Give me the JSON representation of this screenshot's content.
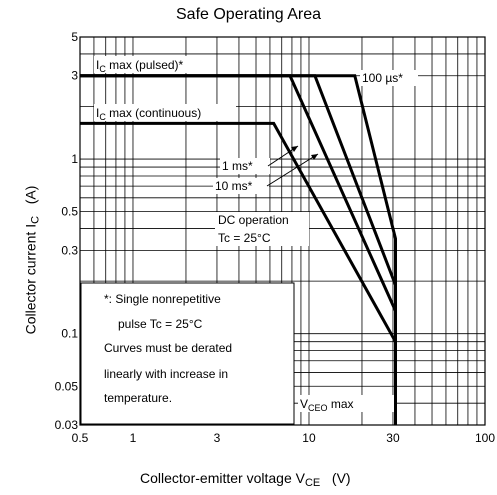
{
  "chart_data": {
    "type": "line",
    "title": "Safe Operating Area",
    "xlabel": {
      "text": "Collector-emitter voltage V",
      "sub": "CE",
      "unit": "(V)"
    },
    "ylabel": {
      "text": "Collector current I",
      "sub": "C",
      "unit": "(A)"
    },
    "x_scale": "log",
    "y_scale": "log",
    "xlim": [
      0.5,
      100
    ],
    "ylim": [
      0.03,
      5
    ],
    "x_ticks": [
      {
        "value": 0.5,
        "label": "0.5"
      },
      {
        "value": 1,
        "label": "1"
      },
      {
        "value": 3,
        "label": "3"
      },
      {
        "value": 10,
        "label": "10"
      },
      {
        "value": 30,
        "label": "30"
      },
      {
        "value": 100,
        "label": "100"
      }
    ],
    "y_ticks": [
      {
        "value": 0.03,
        "label": "0.03"
      },
      {
        "value": 0.05,
        "label": "0.05"
      },
      {
        "value": 0.1,
        "label": "0.1"
      },
      {
        "value": 0.3,
        "label": "0.3"
      },
      {
        "value": 0.5,
        "label": "0.5"
      },
      {
        "value": 1,
        "label": "1"
      },
      {
        "value": 3,
        "label": "3"
      },
      {
        "value": 5,
        "label": "5"
      }
    ],
    "grid": true,
    "series": [
      {
        "x": [
          0.5,
          18.2,
          31,
          31
        ],
        "y": [
          3,
          3,
          0.35,
          0.03
        ]
      },
      {
        "x": [
          0.5,
          10.8,
          31
        ],
        "y": [
          3,
          3,
          0.19
        ]
      },
      {
        "x": [
          0.5,
          7.8,
          31
        ],
        "y": [
          3,
          3,
          0.135
        ]
      },
      {
        "x": [
          0.5,
          6.3,
          31
        ],
        "y": [
          1.6,
          1.6,
          0.09
        ]
      }
    ],
    "annotations": {
      "ic_pulsed": {
        "main": "I",
        "sub": "C",
        "rest": " max (pulsed)*"
      },
      "ic_continuous": {
        "main": "I",
        "sub": "C",
        "rest": " max (continuous)"
      },
      "pulse_100us": "100 µs*",
      "pulse_1ms": "1 ms*",
      "pulse_10ms": "10 ms*",
      "dc_operation": "DC operation",
      "dc_tc": "Tc = 25°C",
      "vceo": {
        "main": "V",
        "sub": "CEO",
        "rest": " max"
      },
      "note_lines": [
        "*: Single nonrepetitive",
        "pulse   Tc = 25°C",
        "Curves must be derated",
        "linearly with increase in",
        "temperature."
      ]
    }
  }
}
